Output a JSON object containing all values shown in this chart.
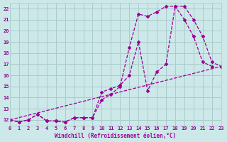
{
  "xlabel": "Windchill (Refroidissement éolien,°C)",
  "background_color": "#cce8e8",
  "line_color": "#990099",
  "grid_color": "#aacccc",
  "xlim": [
    0,
    23
  ],
  "ylim": [
    11.5,
    22.5
  ],
  "yticks": [
    12,
    13,
    14,
    15,
    16,
    17,
    18,
    19,
    20,
    21,
    22
  ],
  "xticks": [
    0,
    1,
    2,
    3,
    4,
    5,
    6,
    7,
    8,
    9,
    10,
    11,
    12,
    13,
    14,
    15,
    16,
    17,
    18,
    19,
    20,
    21,
    22,
    23
  ],
  "series": [
    {
      "x": [
        0,
        1,
        2,
        3,
        4,
        5,
        6,
        7,
        8,
        9,
        10,
        11,
        12,
        13,
        14,
        15,
        16,
        17,
        18,
        19,
        20,
        21,
        22,
        23
      ],
      "y": [
        12.0,
        11.8,
        12.0,
        12.5,
        11.9,
        11.9,
        11.8,
        12.2,
        12.2,
        12.2,
        13.8,
        14.3,
        15.0,
        18.5,
        21.5,
        21.3,
        21.7,
        22.2,
        22.2,
        21.0,
        19.5,
        17.2,
        16.8,
        null
      ]
    },
    {
      "x": [
        0,
        1,
        2,
        3,
        4,
        5,
        6,
        7,
        8,
        9,
        10,
        11,
        12,
        13,
        14,
        15,
        16,
        17,
        18,
        19,
        20,
        21,
        22,
        23
      ],
      "y": [
        12.0,
        11.8,
        12.0,
        12.5,
        11.9,
        11.9,
        11.8,
        12.2,
        12.2,
        12.2,
        14.5,
        14.8,
        15.1,
        16.0,
        19.0,
        14.6,
        16.3,
        17.0,
        22.2,
        22.2,
        21.0,
        19.5,
        17.2,
        16.8
      ]
    },
    {
      "x": [
        0,
        23
      ],
      "y": [
        12.0,
        16.8
      ]
    }
  ]
}
